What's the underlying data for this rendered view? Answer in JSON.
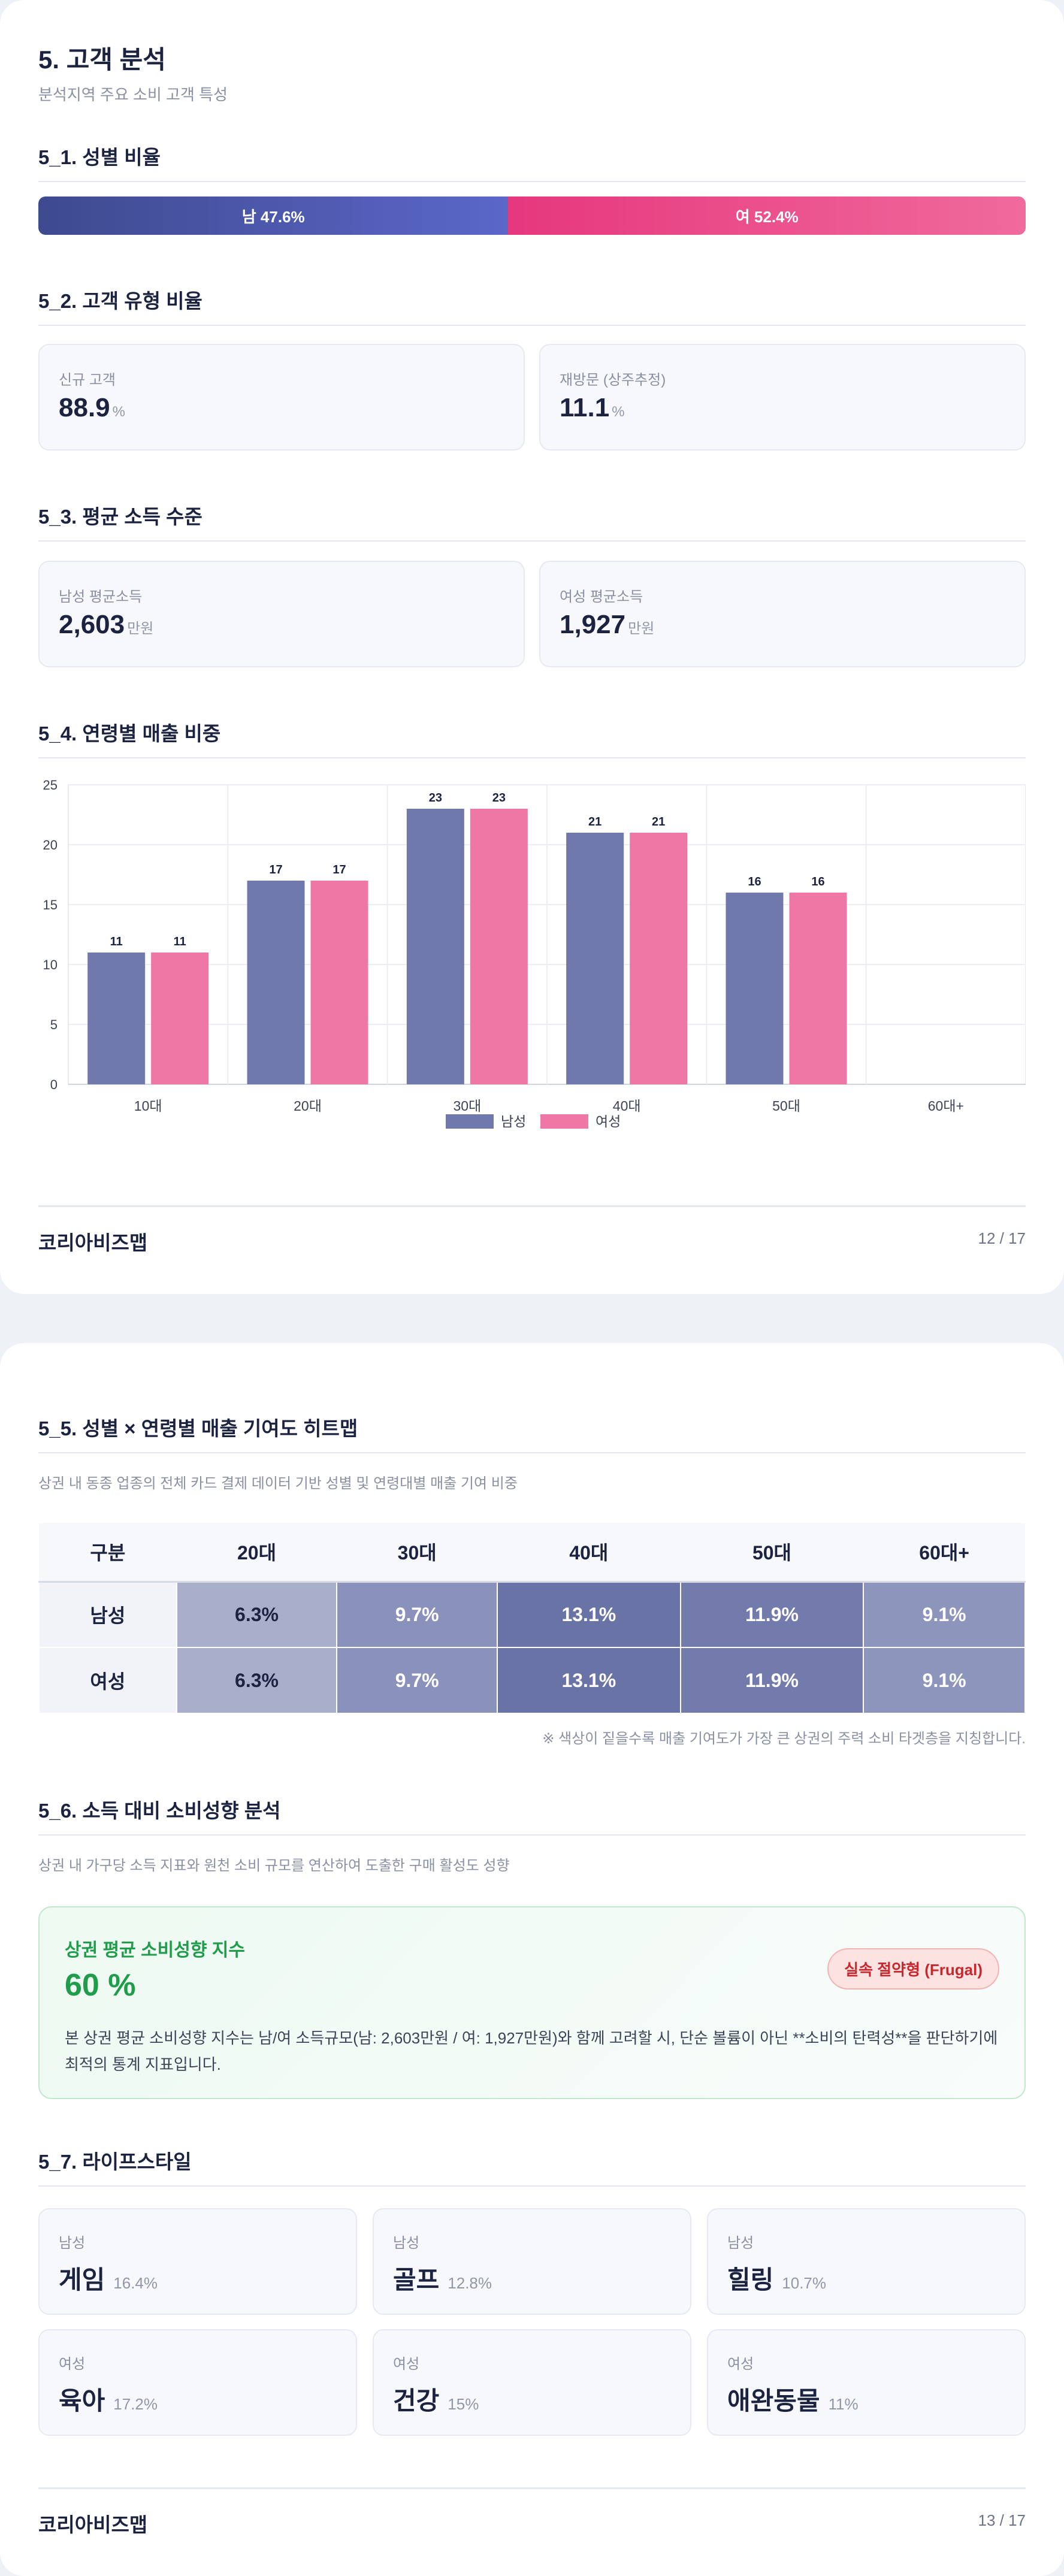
{
  "page1": {
    "title": "5. 고객 분석",
    "subtitle": "분석지역 주요 소비 고객 특성",
    "s51": {
      "title": "5_1. 성별 비율",
      "male_label": "남 47.6%",
      "female_label": "여 52.4%",
      "male_pct": 47.6,
      "female_pct": 52.4
    },
    "s52": {
      "title": "5_2. 고객 유형 비율",
      "cards": [
        {
          "label": "신규 고객",
          "value": "88.9",
          "unit": "%"
        },
        {
          "label": "재방문 (상주추정)",
          "value": "11.1",
          "unit": "%"
        }
      ]
    },
    "s53": {
      "title": "5_3. 평균 소득 수준",
      "cards": [
        {
          "label": "남성 평균소득",
          "value": "2,603",
          "unit": "만원"
        },
        {
          "label": "여성 평균소득",
          "value": "1,927",
          "unit": "만원"
        }
      ]
    },
    "s54": {
      "title": "5_4. 연령별 매출 비중"
    },
    "footer": {
      "brand": "코리아비즈맵",
      "page": "12 / 17"
    }
  },
  "chart_data": {
    "type": "bar",
    "categories": [
      "10대",
      "20대",
      "30대",
      "40대",
      "50대",
      "60대+"
    ],
    "series": [
      {
        "name": "남성",
        "values": [
          11,
          17,
          23,
          21,
          16,
          0
        ],
        "labels": [
          "11",
          "17",
          "23",
          "21",
          "16",
          ""
        ],
        "color": "#7079ab"
      },
      {
        "name": "여성",
        "values": [
          11,
          17,
          23,
          21,
          16,
          0
        ],
        "labels": [
          "11",
          "17",
          "23",
          "21",
          "16",
          ""
        ],
        "color": "#ee77a6"
      }
    ],
    "yticks": [
      "0",
      "5",
      "10",
      "15",
      "20",
      "25"
    ],
    "ylim": [
      0,
      25
    ],
    "grid": true,
    "legend": "bottom-center"
  },
  "page2": {
    "s55": {
      "title": "5_5. 성별 × 연령별 매출 기여도 히트맵",
      "desc": "상권 내 동종 업종의 전체 카드 결제 데이터 기반 성별 및 연령대별 매출 기여 비중",
      "headers": [
        "구분",
        "20대",
        "30대",
        "40대",
        "50대",
        "60대+"
      ],
      "rows": [
        {
          "label": "남성",
          "cells": [
            "6.3%",
            "9.7%",
            "13.1%",
            "11.9%",
            "9.1%"
          ]
        },
        {
          "label": "여성",
          "cells": [
            "6.3%",
            "9.7%",
            "13.1%",
            "11.9%",
            "9.1%"
          ]
        }
      ],
      "cell_colors": [
        "#a9aecb",
        "#8a91ba",
        "#6a73a6",
        "#727bab",
        "#8e95bd"
      ],
      "cell_text_colors": [
        "#1c2340",
        "#ffffff",
        "#ffffff",
        "#ffffff",
        "#ffffff"
      ],
      "note": "※ 색상이 짙을수록 매출 기여도가 가장 큰 상권의 주력 소비 타겟층을 지칭합니다."
    },
    "s56": {
      "title": "5_6. 소득 대비 소비성향 분석",
      "desc": "상권 내 가구당 소득 지표와 원천 소비 규모를 연산하여 도출한 구매 활성도 성향",
      "card_title": "상권 평균 소비성향 지수",
      "card_value": "60 %",
      "badge": "실속 절약형 (Frugal)",
      "text": "본 상권 평균 소비성향 지수는 남/여 소득규모(남: 2,603만원 / 여: 1,927만원)와 함께 고려할 시, 단순 볼륨이 아닌 **소비의 탄력성**을 판단하기에 최적의 통계 지표입니다."
    },
    "s57": {
      "title": "5_7. 라이프스타일",
      "items": [
        {
          "gender": "남성",
          "name": "게임",
          "pct": "16.4%"
        },
        {
          "gender": "남성",
          "name": "골프",
          "pct": "12.8%"
        },
        {
          "gender": "남성",
          "name": "힐링",
          "pct": "10.7%"
        },
        {
          "gender": "여성",
          "name": "육아",
          "pct": "17.2%"
        },
        {
          "gender": "여성",
          "name": "건강",
          "pct": "15%"
        },
        {
          "gender": "여성",
          "name": "애완동물",
          "pct": "11%"
        }
      ]
    },
    "footer": {
      "brand": "코리아비즈맵",
      "page": "13 / 17"
    }
  }
}
